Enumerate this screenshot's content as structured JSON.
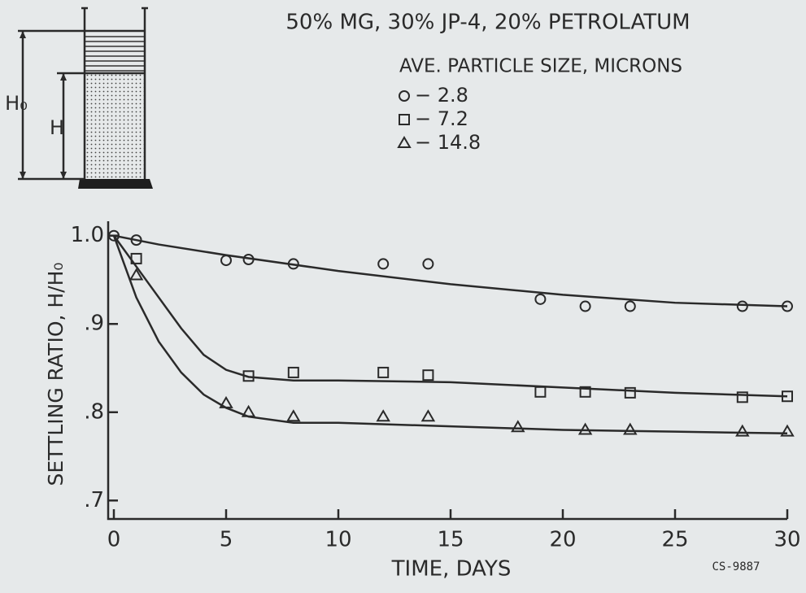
{
  "chart_data": {
    "type": "scatter",
    "title": "50% MG, 30% JP-4, 20% PETROLATUM",
    "legend_title": "AVE. PARTICLE SIZE, MICRONS",
    "x_label": "TIME, DAYS",
    "y_label": "SETTLING RATIO,  H/H₀",
    "annotation": "CS-9887",
    "diagram_labels": [
      "H₀",
      "H"
    ],
    "xlim": [
      0,
      30
    ],
    "ylim": [
      0.68,
      1.02
    ],
    "xticks": [
      0,
      5,
      10,
      15,
      20,
      25,
      30
    ],
    "yticks": [
      {
        "value": 1.0,
        "label": "1.0"
      },
      {
        "value": 0.9,
        "label": ".9"
      },
      {
        "value": 0.8,
        "label": ".8"
      },
      {
        "value": 0.7,
        "label": ".7"
      }
    ],
    "grid": false,
    "series": [
      {
        "name": "− 2.8",
        "marker": "circle",
        "color": "#2a2a2a",
        "x": [
          0,
          1,
          5,
          6,
          8,
          12,
          14,
          19,
          21,
          23,
          28,
          30
        ],
        "values": [
          1.0,
          0.995,
          0.972,
          0.973,
          0.968,
          0.968,
          0.968,
          0.928,
          0.92,
          0.92,
          0.92,
          0.92
        ],
        "fit": {
          "x": [
            0,
            2,
            5,
            10,
            15,
            20,
            25,
            30
          ],
          "values": [
            1.0,
            0.99,
            0.978,
            0.96,
            0.945,
            0.933,
            0.924,
            0.92
          ]
        }
      },
      {
        "name": "− 7.2",
        "marker": "square",
        "color": "#2a2a2a",
        "x": [
          1,
          6,
          8,
          12,
          14,
          19,
          21,
          23,
          28,
          30
        ],
        "values": [
          0.974,
          0.841,
          0.845,
          0.845,
          0.842,
          0.823,
          0.823,
          0.822,
          0.817,
          0.818
        ],
        "fit": {
          "x": [
            0,
            1,
            2,
            3,
            4,
            5,
            6,
            8,
            10,
            15,
            20,
            25,
            30
          ],
          "values": [
            1.0,
            0.965,
            0.93,
            0.895,
            0.865,
            0.848,
            0.84,
            0.836,
            0.836,
            0.834,
            0.828,
            0.822,
            0.818
          ]
        }
      },
      {
        "name": "− 14.8",
        "marker": "triangle",
        "color": "#2a2a2a",
        "x": [
          1,
          5,
          6,
          8,
          12,
          14,
          18,
          21,
          23,
          28,
          30
        ],
        "values": [
          0.955,
          0.81,
          0.8,
          0.795,
          0.795,
          0.795,
          0.783,
          0.78,
          0.78,
          0.778,
          0.778
        ],
        "fit": {
          "x": [
            0,
            1,
            2,
            3,
            4,
            5,
            6,
            8,
            10,
            15,
            20,
            25,
            30
          ],
          "values": [
            1.0,
            0.93,
            0.88,
            0.845,
            0.82,
            0.805,
            0.795,
            0.788,
            0.788,
            0.784,
            0.78,
            0.778,
            0.776
          ]
        }
      }
    ]
  }
}
